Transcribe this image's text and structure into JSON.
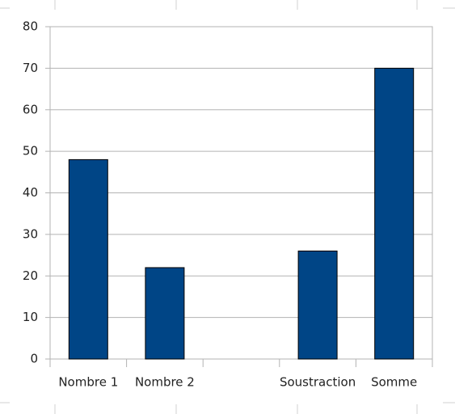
{
  "chart_data": {
    "type": "bar",
    "categories": [
      "Nombre 1",
      "Nombre 2",
      null,
      "Soustraction",
      "Somme"
    ],
    "values": [
      48,
      22,
      null,
      26,
      70
    ],
    "color": "#004586",
    "ylim": [
      0,
      80
    ],
    "yticks": [
      0,
      10,
      20,
      30,
      40,
      50,
      60,
      70,
      80
    ],
    "grid": true
  }
}
